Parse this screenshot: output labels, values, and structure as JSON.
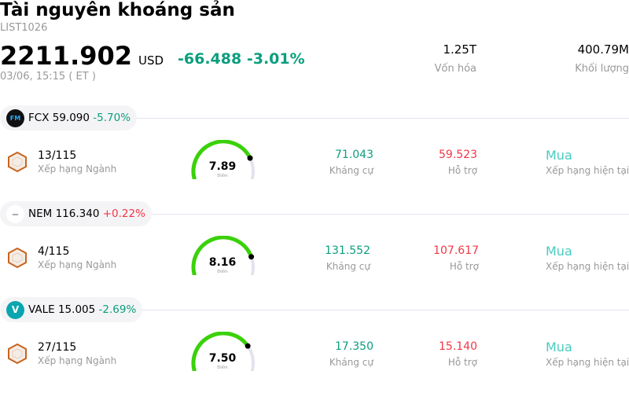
{
  "header": {
    "title": "Tài nguyên khoáng sản",
    "code": "LIST1026",
    "price": "2211.902",
    "currency": "USD",
    "change": "-66.488",
    "change_pct": "-3.01%",
    "datetime": "03/06, 15:15  ( ET )",
    "market_cap": {
      "value": "1.25T",
      "label": "Vốn hóa"
    },
    "volume": {
      "value": "400.79M",
      "label": "Khối lượng"
    }
  },
  "colors": {
    "negative": "#0b9e7e",
    "positive": "#f23645",
    "buy": "#4ccabf",
    "gauge": "#3ad10a"
  },
  "stocks": [
    {
      "ticker": "FCX",
      "price": "59.090",
      "change": "-5.70%",
      "dir": "neg",
      "rank": "13/115",
      "rank_label": "Xếp hạng Ngành",
      "score": "7.89",
      "score_label": "Điểm",
      "resistance": "71.043",
      "resistance_label": "Kháng cự",
      "support": "59.523",
      "support_label": "Hỗ trợ",
      "rating": "Mua",
      "rating_label": "Xếp hạng hiện tại"
    },
    {
      "ticker": "NEM",
      "price": "116.340",
      "change": "+0.22%",
      "dir": "pos",
      "rank": "4/115",
      "rank_label": "Xếp hạng Ngành",
      "score": "8.16",
      "score_label": "Điểm",
      "resistance": "131.552",
      "resistance_label": "Kháng cự",
      "support": "107.617",
      "support_label": "Hỗ trợ",
      "rating": "Mua",
      "rating_label": "Xếp hạng hiện tại"
    },
    {
      "ticker": "VALE",
      "price": "15.005",
      "change": "-2.69%",
      "dir": "neg",
      "rank": "27/115",
      "rank_label": "Xếp hạng Ngành",
      "score": "7.50",
      "score_label": "Điểm",
      "resistance": "17.350",
      "resistance_label": "Kháng cự",
      "support": "15.140",
      "support_label": "Hỗ trợ",
      "rating": "Mua",
      "rating_label": "Xếp hạng hiện tại"
    }
  ]
}
